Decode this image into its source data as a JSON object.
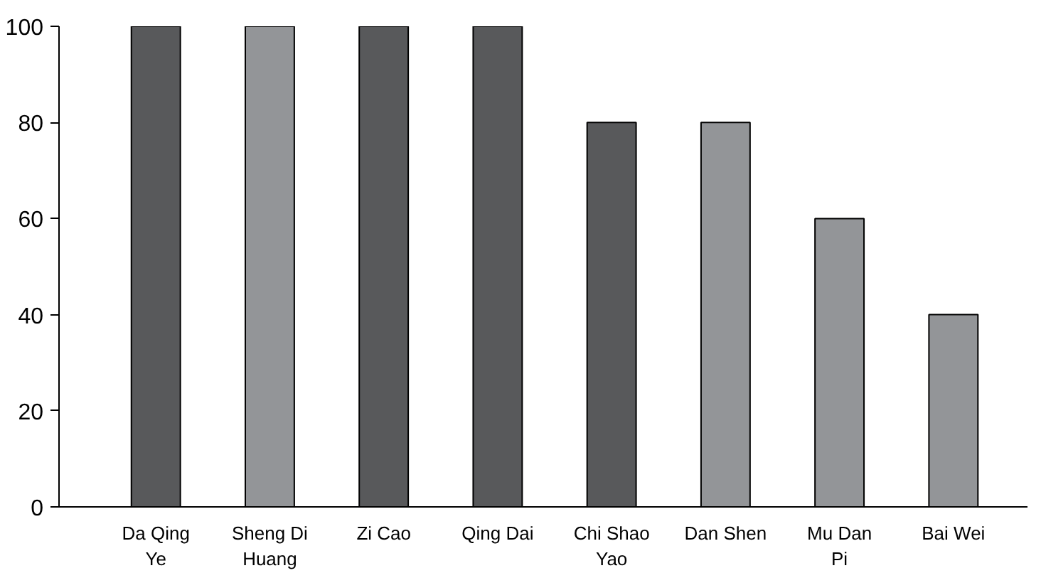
{
  "chart_data": {
    "type": "bar",
    "categories": [
      "Da Qing Ye",
      "Sheng Di Huang",
      "Zi Cao",
      "Qing Dai",
      "Chi Shao Yao",
      "Dan Shen",
      "Mu Dan Pi",
      "Bai Wei"
    ],
    "values": [
      100,
      100,
      100,
      100,
      80,
      80,
      60,
      40
    ],
    "colors": [
      "#58595b",
      "#939598",
      "#58595b",
      "#58595b",
      "#58595b",
      "#939598",
      "#939598",
      "#939598"
    ],
    "ylim": [
      0,
      100
    ],
    "yticks": [
      0,
      20,
      40,
      60,
      80,
      100
    ],
    "grid": false
  }
}
